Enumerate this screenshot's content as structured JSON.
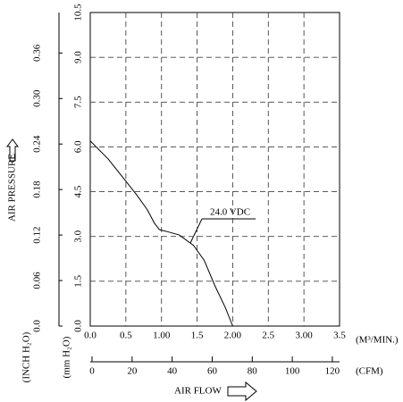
{
  "chart_data": {
    "type": "line",
    "ylabel": "AIR PRESSURE",
    "yunit": "(mm H₂O)",
    "y2unit": "(INCH H₂O)",
    "xlabel": "AIR FLOW",
    "xunit": "(M³/MIN.)",
    "x2unit": "(CFM)",
    "x": [
      0,
      0.25,
      0.5,
      0.65,
      0.8,
      0.9,
      0.97,
      1.1,
      1.25,
      1.45,
      1.6,
      1.75,
      1.9,
      2.0
    ],
    "series": [
      {
        "name": "24.0 VDC",
        "color": "#000000",
        "values": [
          6.2,
          5.6,
          4.85,
          4.4,
          3.9,
          3.45,
          3.23,
          3.15,
          3.05,
          2.7,
          2.2,
          1.35,
          0.6,
          0
        ]
      }
    ],
    "xlim": [
      0,
      3.5
    ],
    "xticks": [
      {
        "value": 0,
        "label": "0.0"
      },
      0.5,
      {
        "value": 1,
        "label": "1.00"
      },
      1.5,
      {
        "value": 2,
        "label": "2.00"
      },
      2.5,
      {
        "value": 3,
        "label": "3.00"
      },
      3.5
    ],
    "x2lim": [
      0,
      123.6
    ],
    "x2ticks": [
      0,
      20,
      40,
      60,
      80,
      100,
      120
    ],
    "ylim": [
      0,
      10.5
    ],
    "yticks": [
      {
        "value": 0,
        "label": "0.0"
      },
      1.5,
      {
        "value": 3,
        "label": "3.0"
      },
      4.5,
      {
        "value": 6,
        "label": "6.0"
      },
      7.5,
      {
        "value": 9,
        "label": "9.0"
      },
      10.5
    ],
    "y2lim": [
      0,
      0.4134
    ],
    "y2ticks": [
      {
        "value": 0,
        "label": "0.0"
      },
      0.06,
      0.12,
      0.18,
      0.24,
      {
        "value": 0.3,
        "label": "0.30"
      },
      0.36
    ],
    "grid": true
  }
}
